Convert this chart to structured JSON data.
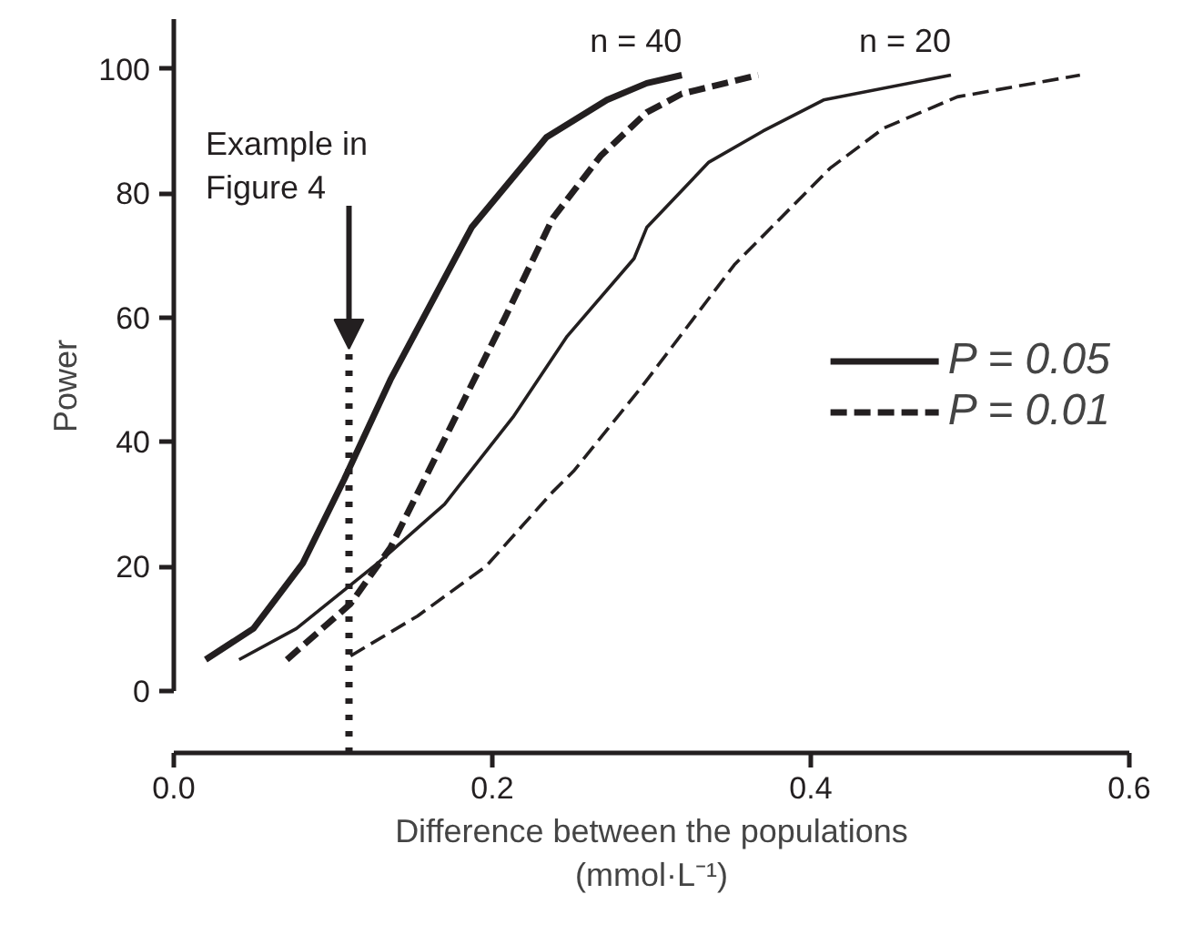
{
  "chart_data": {
    "type": "line",
    "xlabel": "Difference between the populations\n(mmol·L⁻¹)",
    "ylabel": "Power",
    "xlim": [
      0,
      0.6
    ],
    "xticks": [
      {
        "value": 0,
        "label": "0.0"
      },
      0.2,
      0.4,
      0.6
    ],
    "ylim": [
      -10,
      108
    ],
    "yticks": [
      0,
      20,
      40,
      60,
      80,
      100
    ],
    "grid": false,
    "legend": "right",
    "marker": "none",
    "series": [
      {
        "name": "P = 0.05",
        "color": "#231f20",
        "line_style": "solid",
        "x": [
          0.02,
          0.05,
          0.081,
          0.107,
          0.136,
          0.187,
          0.234,
          0.272,
          0.297,
          0.319
        ],
        "values": [
          5,
          10,
          20.5,
          34,
          50,
          74.5,
          89,
          95,
          97.7,
          99
        ]
      },
      {
        "name": "P = 0.01",
        "color": "#231f20",
        "line_style": "dashed",
        "x": [
          0.071,
          0.111,
          0.136,
          0.173,
          0.208,
          0.238,
          0.268,
          0.297,
          0.319,
          0.367
        ],
        "values": [
          5,
          14,
          23,
          42,
          60,
          76,
          86,
          93,
          96,
          99
        ]
      },
      {
        "color": "#231f20",
        "line_style": "solid",
        "x": [
          0.041,
          0.077,
          0.128,
          0.17,
          0.213,
          0.247,
          0.289,
          0.297,
          0.336,
          0.37,
          0.408,
          0.488
        ],
        "values": [
          5,
          10,
          20.5,
          30,
          44,
          57,
          69.5,
          74.5,
          85,
          90,
          95,
          99
        ]
      },
      {
        "color": "#231f20",
        "line_style": "dashed",
        "x": [
          0.111,
          0.153,
          0.196,
          0.238,
          0.251,
          0.293,
          0.352,
          0.412,
          0.446,
          0.492,
          0.569
        ],
        "values": [
          5.6,
          12,
          20,
          32,
          35.3,
          48.6,
          68.5,
          84,
          90.5,
          95.5,
          99
        ]
      }
    ],
    "ref_lines": [
      {
        "axis": "x",
        "value": 0.11,
        "label": "Example in\nFigure 4",
        "line_style": "dotted",
        "color": "#231f20"
      }
    ],
    "annotations": [
      "n = 40",
      "n = 20"
    ]
  }
}
